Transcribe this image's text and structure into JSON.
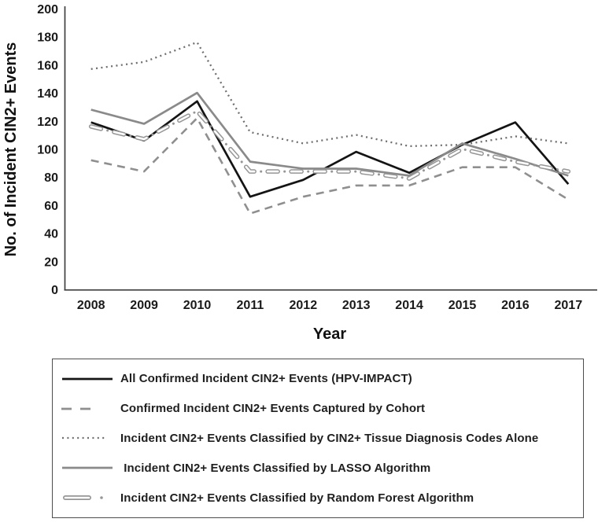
{
  "chart_data": {
    "type": "line",
    "title": "",
    "xlabel": "Year",
    "ylabel": "No. of Incident CIN2+ Events",
    "x": [
      "2008",
      "2009",
      "2010",
      "2011",
      "2012",
      "2013",
      "2014",
      "2015",
      "2016",
      "2017"
    ],
    "ylim": [
      0,
      200
    ],
    "yticks": [
      0,
      20,
      40,
      60,
      80,
      100,
      120,
      140,
      160,
      180,
      200
    ],
    "grid": false,
    "legend_position": "boxed-below",
    "axis_color": "#3f3f3f",
    "series": [
      {
        "name": "All Confirmed Incident CIN2+ Events (HPV-IMPACT)",
        "style": "solid-black",
        "color": "#141414",
        "values": [
          119,
          106,
          134,
          66,
          78,
          98,
          83,
          103,
          119,
          75
        ]
      },
      {
        "name": "Confirmed Incident CIN2+ Events Captured by Cohort",
        "style": "dashed",
        "color": "#8f8f8f",
        "values": [
          92,
          84,
          122,
          54,
          66,
          74,
          74,
          87,
          87,
          64
        ]
      },
      {
        "name": "Incident CIN2+ Events Classified by CIN2+ Tissue Diagnosis Codes Alone",
        "style": "dotted",
        "color": "#6e6e6e",
        "values": [
          157,
          162,
          176,
          112,
          104,
          110,
          102,
          103,
          109,
          104
        ]
      },
      {
        "name": " Incident CIN2+ Events Classified by LASSO Algorithm",
        "style": "solid-gray",
        "color": "#8a8a8a",
        "values": [
          128,
          118,
          140,
          91,
          86,
          86,
          81,
          104,
          93,
          81
        ]
      },
      {
        "name": "Incident CIN2+ Events Classified by Random Forest Algorithm",
        "style": "capsule-dot",
        "color": "#969696",
        "values": [
          116,
          107,
          127,
          84,
          84,
          84,
          79,
          100,
          91,
          84
        ]
      }
    ]
  }
}
